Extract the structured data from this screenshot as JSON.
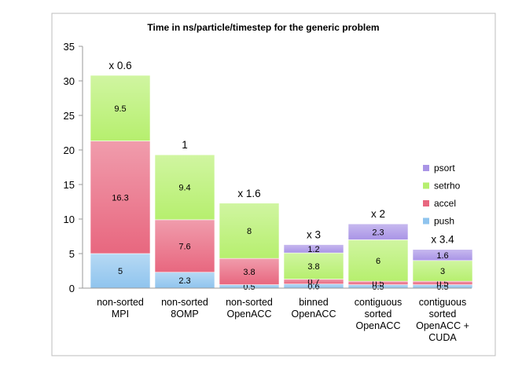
{
  "chart_data": {
    "type": "bar",
    "stacked": true,
    "title": "Time in ns/particle/timestep for the generic problem",
    "categories": [
      [
        "non-sorted",
        "MPI"
      ],
      [
        "non-sorted",
        "8OMP"
      ],
      [
        "non-sorted",
        "OpenACC"
      ],
      [
        "binned",
        "OpenACC"
      ],
      [
        "contiguous",
        "sorted",
        "OpenACC"
      ],
      [
        "contiguous",
        "sorted",
        "OpenACC +",
        "CUDA"
      ]
    ],
    "series": [
      {
        "name": "push",
        "color": "#8fc4ee",
        "values": [
          5,
          2.3,
          0.5,
          0.6,
          0.5,
          0.5
        ],
        "labels": [
          "5",
          "2.3",
          "0.5",
          "0.6",
          "0.5",
          "0.5"
        ]
      },
      {
        "name": "accel",
        "color": "#e8677f",
        "values": [
          16.3,
          7.6,
          3.8,
          0.7,
          0.5,
          0.5
        ],
        "labels": [
          "16.3",
          "7.6",
          "3.8",
          "0.7",
          "0.5",
          "0.5"
        ]
      },
      {
        "name": "setrho",
        "color": "#b6ef6e",
        "values": [
          9.5,
          9.4,
          8,
          3.8,
          6,
          3
        ],
        "labels": [
          "9.5",
          "9.4",
          "8",
          "3.8",
          "6",
          "3"
        ]
      },
      {
        "name": "psort",
        "color": "#a994e6",
        "values": [
          0,
          0,
          0,
          1.2,
          2.3,
          1.6
        ],
        "labels": [
          "",
          "",
          "",
          "1.2",
          "2.3",
          "1.6"
        ]
      }
    ],
    "speedup_labels": [
      "x 0.6",
      "1",
      "x 1.6",
      "x 3",
      "x 2",
      "x 3.4"
    ],
    "legend_order": [
      "psort",
      "setrho",
      "accel",
      "push"
    ],
    "legend_position": "right",
    "ylim": [
      0,
      35
    ],
    "yticks": [
      0,
      5,
      10,
      15,
      20,
      25,
      30,
      35
    ],
    "grid": false
  }
}
